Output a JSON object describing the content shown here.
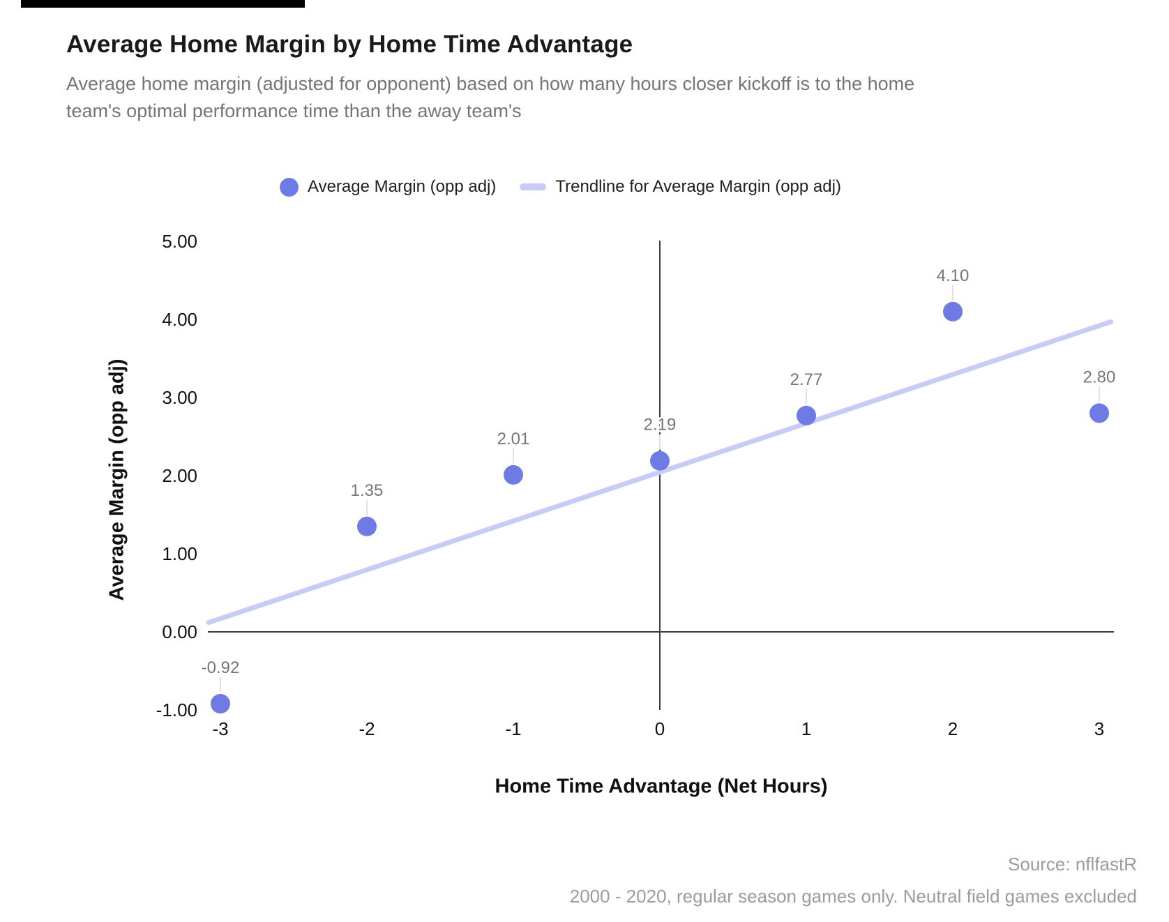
{
  "title": "Average Home Margin by Home Time Advantage",
  "subtitle": {
    "line1": "Average home margin (adjusted for opponent) based on how many hours closer kickoff is to the home",
    "line2": "team's optimal performance time than the away team's"
  },
  "legend": {
    "series_label": "Average Margin (opp adj)",
    "trendline_label": "Trendline for Average Margin (opp adj)"
  },
  "footer": {
    "source": "Source: nflfastR",
    "note": "2000 - 2020, regular season games only. Neutral field games excluded"
  },
  "colors": {
    "point": "#6E7BE4",
    "trendline": "#C7CCF6",
    "leader": "#E0E0E0",
    "axis": "#3C3C3C",
    "point_label": "#757575",
    "tick_label": "#111111"
  },
  "chart_data": {
    "type": "scatter",
    "title": "Average Home Margin by Home Time Advantage",
    "xlabel": "Home Time Advantage (Net Hours)",
    "ylabel": "Average Margin (opp adj)",
    "series_name": "Average Margin (opp adj)",
    "legend_position": "top",
    "grid": false,
    "x": [
      -3,
      -2,
      -1,
      0,
      1,
      2,
      3
    ],
    "values": [
      -0.92,
      1.35,
      2.01,
      2.19,
      2.77,
      4.1,
      2.8
    ],
    "point_labels": [
      "-0.92",
      "1.35",
      "2.01",
      "2.19",
      "2.77",
      "4.10",
      "2.80"
    ],
    "xlim": [
      -3.1,
      3.1
    ],
    "ylim": [
      -1,
      5
    ],
    "x_ticks": [
      {
        "value": -3,
        "label": "-3"
      },
      {
        "value": -2,
        "label": "-2"
      },
      {
        "value": -1,
        "label": "-1"
      },
      {
        "value": 0,
        "label": "0"
      },
      {
        "value": 1,
        "label": "1"
      },
      {
        "value": 2,
        "label": "2"
      },
      {
        "value": 3,
        "label": "3"
      }
    ],
    "y_ticks": [
      {
        "value": 5,
        "label": "5.00"
      },
      {
        "value": 4,
        "label": "4.00"
      },
      {
        "value": 3,
        "label": "3.00"
      },
      {
        "value": 2,
        "label": "2.00"
      },
      {
        "value": 1,
        "label": "1.00"
      },
      {
        "value": 0,
        "label": "0.00"
      },
      {
        "value": -1,
        "label": "-1.00"
      }
    ],
    "trendline": {
      "name": "Trendline for Average Margin (opp adj)",
      "x1": -3.08,
      "y1": 0.12,
      "x2": 3.08,
      "y2": 3.97
    }
  }
}
